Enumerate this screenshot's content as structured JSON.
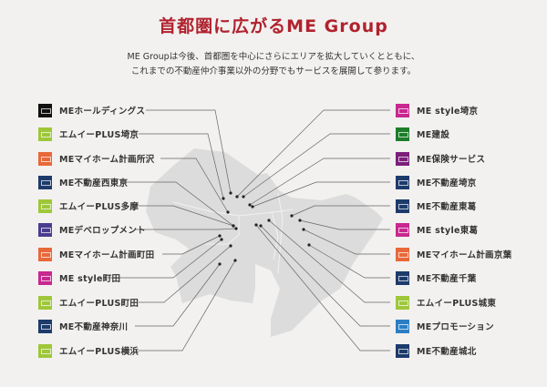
{
  "header": {
    "title": "首都圏に広がるME Group",
    "intro_line1": "ME Groupは今後、首都圏を中心にさらにエリアを拡大していくとともに、",
    "intro_line2": "これまでの不動産仲介事業以外の分野でもサービスを展開して参ります。"
  },
  "colors": {
    "title": "#b0222e",
    "map": "#dcdcdc",
    "background": "#f2f1ef"
  },
  "left_companies": [
    {
      "label": "MEホールディングス",
      "logo_color": "#111111"
    },
    {
      "label": "エムイーPLUS埼京",
      "logo_color": "#9ec73a"
    },
    {
      "label": "MEマイホーム計画所沢",
      "logo_color": "#e8683a"
    },
    {
      "label": "ME不動産西東京",
      "logo_color": "#1d3b6b"
    },
    {
      "label": "エムイーPLUS多摩",
      "logo_color": "#9ec73a"
    },
    {
      "label": "MEデベロップメント",
      "logo_color": "#4a3d8f"
    },
    {
      "label": "MEマイホーム計画町田",
      "logo_color": "#e8683a"
    },
    {
      "label": "ME style町田",
      "logo_color": "#c8288f"
    },
    {
      "label": "エムイーPLUS町田",
      "logo_color": "#9ec73a"
    },
    {
      "label": "ME不動産神奈川",
      "logo_color": "#1d3b6b"
    },
    {
      "label": "エムイーPLUS横浜",
      "logo_color": "#9ec73a"
    }
  ],
  "right_companies": [
    {
      "label": "ME style埼京",
      "logo_color": "#c8288f"
    },
    {
      "label": "ME建設",
      "logo_color": "#1e7d2a"
    },
    {
      "label": "ME保険サービス",
      "logo_color": "#7b1f7a"
    },
    {
      "label": "ME不動産埼京",
      "logo_color": "#1d3b6b"
    },
    {
      "label": "ME不動産東葛",
      "logo_color": "#1d3b6b"
    },
    {
      "label": "ME style東葛",
      "logo_color": "#c8288f"
    },
    {
      "label": "MEマイホーム計画京葉",
      "logo_color": "#e8683a"
    },
    {
      "label": "ME不動産千葉",
      "logo_color": "#1d3b6b"
    },
    {
      "label": "エムイーPLUS城東",
      "logo_color": "#9ec73a"
    },
    {
      "label": "MEプロモーション",
      "logo_color": "#2a7ec4"
    },
    {
      "label": "ME不動産城北",
      "logo_color": "#1d3b6b"
    }
  ]
}
